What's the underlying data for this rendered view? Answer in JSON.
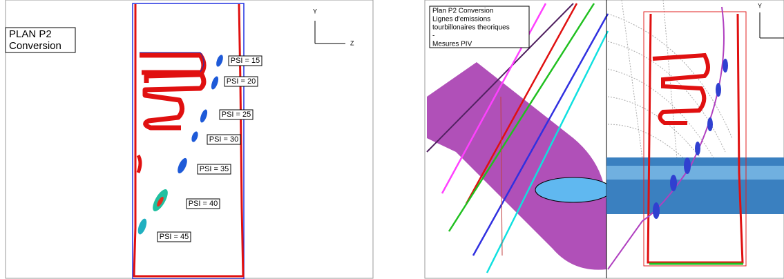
{
  "left_panel": {
    "title_lines": [
      "PLAN P2",
      "Conversion"
    ],
    "labels": [
      "PSI = 15",
      "PSI = 20",
      "PSI = 25",
      "PSI = 30",
      "PSI = 35",
      "PSI = 40",
      "PSI = 45"
    ],
    "axis": {
      "y": "Y",
      "z": "Z"
    }
  },
  "right_panel": {
    "legend_lines": [
      "Plan P2 Conversion",
      "Lignes d'emissions",
      "tourbillonaires theoriques",
      "-",
      "Mesures PIV"
    ],
    "axis": {
      "y": "Y"
    }
  }
}
